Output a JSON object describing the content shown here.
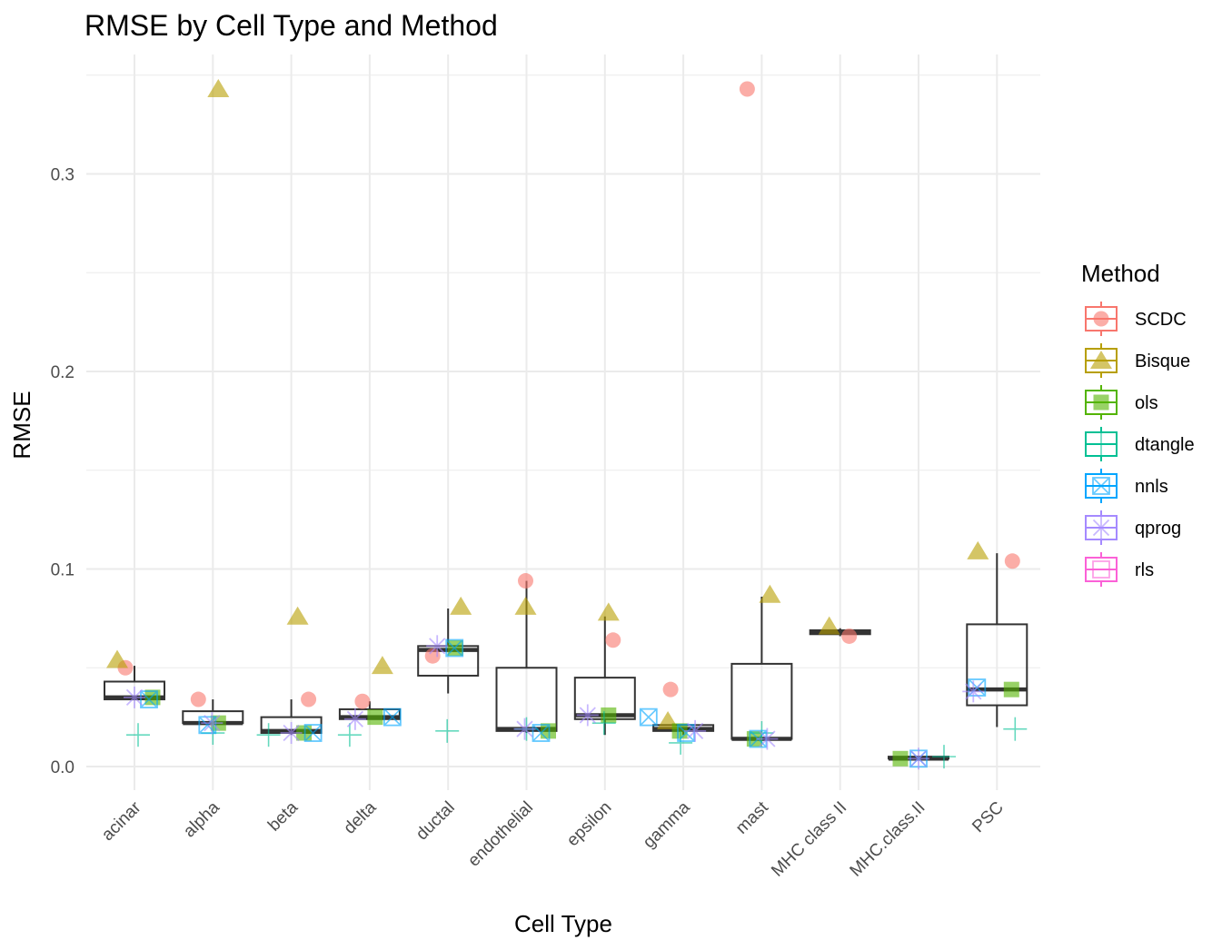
{
  "chart_data": {
    "type": "boxplot",
    "title": "RMSE by Cell Type and Method",
    "xlabel": "Cell Type",
    "ylabel": "RMSE",
    "ylim": [
      -0.012,
      0.355
    ],
    "yticks": [
      0.0,
      0.1,
      0.2,
      0.3
    ],
    "ytick_labels": [
      "0.0",
      "0.1",
      "0.2",
      "0.3"
    ],
    "categories": [
      "acinar",
      "alpha",
      "beta",
      "delta",
      "ductal",
      "endothelial",
      "epsilon",
      "gamma",
      "mast",
      "MHC class II",
      "MHC.class.II",
      "PSC"
    ],
    "grid": true,
    "legend": {
      "title": "Method",
      "placement": "right",
      "entries": [
        {
          "name": "SCDC",
          "color": "#F8766D",
          "shape": "circle"
        },
        {
          "name": "Bisque",
          "color": "#B79F00",
          "shape": "triangle"
        },
        {
          "name": "ols",
          "color": "#53B400",
          "shape": "square"
        },
        {
          "name": "dtangle",
          "color": "#00C094",
          "shape": "plus"
        },
        {
          "name": "nnls",
          "color": "#00A6FF",
          "shape": "boxx"
        },
        {
          "name": "qprog",
          "color": "#A58AFF",
          "shape": "star"
        },
        {
          "name": "rls",
          "color": "#FB61D7",
          "shape": "box"
        }
      ]
    },
    "boxes": [
      {
        "category": "acinar",
        "whisker_low": 0.034,
        "q1": 0.034,
        "median": 0.035,
        "q3": 0.043,
        "whisker_high": 0.051
      },
      {
        "category": "alpha",
        "whisker_low": 0.021,
        "q1": 0.022,
        "median": 0.022,
        "q3": 0.028,
        "whisker_high": 0.034
      },
      {
        "category": "beta",
        "whisker_low": 0.016,
        "q1": 0.017,
        "median": 0.018,
        "q3": 0.025,
        "whisker_high": 0.034
      },
      {
        "category": "delta",
        "whisker_low": 0.024,
        "q1": 0.024,
        "median": 0.025,
        "q3": 0.029,
        "whisker_high": 0.033
      },
      {
        "category": "ductal",
        "whisker_low": 0.037,
        "q1": 0.046,
        "median": 0.059,
        "q3": 0.061,
        "whisker_high": 0.08
      },
      {
        "category": "endothelial",
        "whisker_low": 0.017,
        "q1": 0.018,
        "median": 0.019,
        "q3": 0.05,
        "whisker_high": 0.094
      },
      {
        "category": "epsilon",
        "whisker_low": 0.016,
        "q1": 0.024,
        "median": 0.026,
        "q3": 0.045,
        "whisker_high": 0.076
      },
      {
        "category": "gamma",
        "whisker_low": 0.016,
        "q1": 0.018,
        "median": 0.019,
        "q3": 0.021,
        "whisker_high": 0.021
      },
      {
        "category": "mast",
        "whisker_low": 0.013,
        "q1": 0.014,
        "median": 0.014,
        "q3": 0.052,
        "whisker_high": 0.086
      },
      {
        "category": "MHC class II",
        "whisker_low": 0.066,
        "q1": 0.067,
        "median": 0.068,
        "q3": 0.069,
        "whisker_high": 0.07
      },
      {
        "category": "MHC.class.II",
        "whisker_low": 0.004,
        "q1": 0.004,
        "median": 0.004,
        "q3": 0.005,
        "whisker_high": 0.005
      },
      {
        "category": "PSC",
        "whisker_low": 0.02,
        "q1": 0.031,
        "median": 0.039,
        "q3": 0.072,
        "whisker_high": 0.108
      }
    ],
    "series": [
      {
        "name": "SCDC",
        "points": [
          {
            "category": "acinar",
            "y": 0.05
          },
          {
            "category": "alpha",
            "y": 0.034
          },
          {
            "category": "beta",
            "y": 0.034
          },
          {
            "category": "delta",
            "y": 0.033
          },
          {
            "category": "ductal",
            "y": 0.056
          },
          {
            "category": "endothelial",
            "y": 0.094
          },
          {
            "category": "epsilon",
            "y": 0.064
          },
          {
            "category": "gamma",
            "y": 0.039
          },
          {
            "category": "mast",
            "y": 0.343
          },
          {
            "category": "MHC class II",
            "y": 0.066
          },
          {
            "category": "PSC",
            "y": 0.104
          }
        ]
      },
      {
        "name": "Bisque",
        "points": [
          {
            "category": "acinar",
            "y": 0.054
          },
          {
            "category": "alpha",
            "y": 0.343
          },
          {
            "category": "beta",
            "y": 0.076
          },
          {
            "category": "delta",
            "y": 0.051
          },
          {
            "category": "ductal",
            "y": 0.081
          },
          {
            "category": "endothelial",
            "y": 0.081
          },
          {
            "category": "epsilon",
            "y": 0.078
          },
          {
            "category": "gamma",
            "y": 0.023
          },
          {
            "category": "mast",
            "y": 0.087
          },
          {
            "category": "MHC class II",
            "y": 0.071
          },
          {
            "category": "PSC",
            "y": 0.109
          }
        ]
      },
      {
        "name": "ols",
        "points": [
          {
            "category": "acinar",
            "y": 0.035
          },
          {
            "category": "alpha",
            "y": 0.022
          },
          {
            "category": "beta",
            "y": 0.017
          },
          {
            "category": "delta",
            "y": 0.025
          },
          {
            "category": "ductal",
            "y": 0.06
          },
          {
            "category": "endothelial",
            "y": 0.018
          },
          {
            "category": "epsilon",
            "y": 0.026
          },
          {
            "category": "gamma",
            "y": 0.018
          },
          {
            "category": "mast",
            "y": 0.014
          },
          {
            "category": "MHC.class.II",
            "y": 0.004
          },
          {
            "category": "PSC",
            "y": 0.039
          }
        ]
      },
      {
        "name": "dtangle",
        "points": [
          {
            "category": "acinar",
            "y": 0.016
          },
          {
            "category": "alpha",
            "y": 0.017
          },
          {
            "category": "beta",
            "y": 0.016
          },
          {
            "category": "delta",
            "y": 0.016
          },
          {
            "category": "ductal",
            "y": 0.018
          },
          {
            "category": "endothelial",
            "y": 0.019
          },
          {
            "category": "epsilon",
            "y": 0.022
          },
          {
            "category": "gamma",
            "y": 0.012
          },
          {
            "category": "mast",
            "y": 0.017
          },
          {
            "category": "MHC.class.II",
            "y": 0.005
          },
          {
            "category": "PSC",
            "y": 0.019
          }
        ]
      },
      {
        "name": "nnls",
        "points": [
          {
            "category": "acinar",
            "y": 0.034
          },
          {
            "category": "alpha",
            "y": 0.021
          },
          {
            "category": "beta",
            "y": 0.017
          },
          {
            "category": "delta",
            "y": 0.025
          },
          {
            "category": "ductal",
            "y": 0.06
          },
          {
            "category": "endothelial",
            "y": 0.017
          },
          {
            "category": "epsilon",
            "y": 0.025
          },
          {
            "category": "gamma",
            "y": 0.017
          },
          {
            "category": "mast",
            "y": 0.014
          },
          {
            "category": "MHC.class.II",
            "y": 0.004
          },
          {
            "category": "PSC",
            "y": 0.04
          }
        ]
      },
      {
        "name": "qprog",
        "points": [
          {
            "category": "acinar",
            "y": 0.035
          },
          {
            "category": "alpha",
            "y": 0.022
          },
          {
            "category": "beta",
            "y": 0.017
          },
          {
            "category": "delta",
            "y": 0.024
          },
          {
            "category": "ductal",
            "y": 0.061
          },
          {
            "category": "endothelial",
            "y": 0.019
          },
          {
            "category": "epsilon",
            "y": 0.026
          },
          {
            "category": "gamma",
            "y": 0.018
          },
          {
            "category": "mast",
            "y": 0.014
          },
          {
            "category": "MHC.class.II",
            "y": 0.004
          },
          {
            "category": "PSC",
            "y": 0.038
          }
        ]
      },
      {
        "name": "rls",
        "points": []
      }
    ]
  }
}
